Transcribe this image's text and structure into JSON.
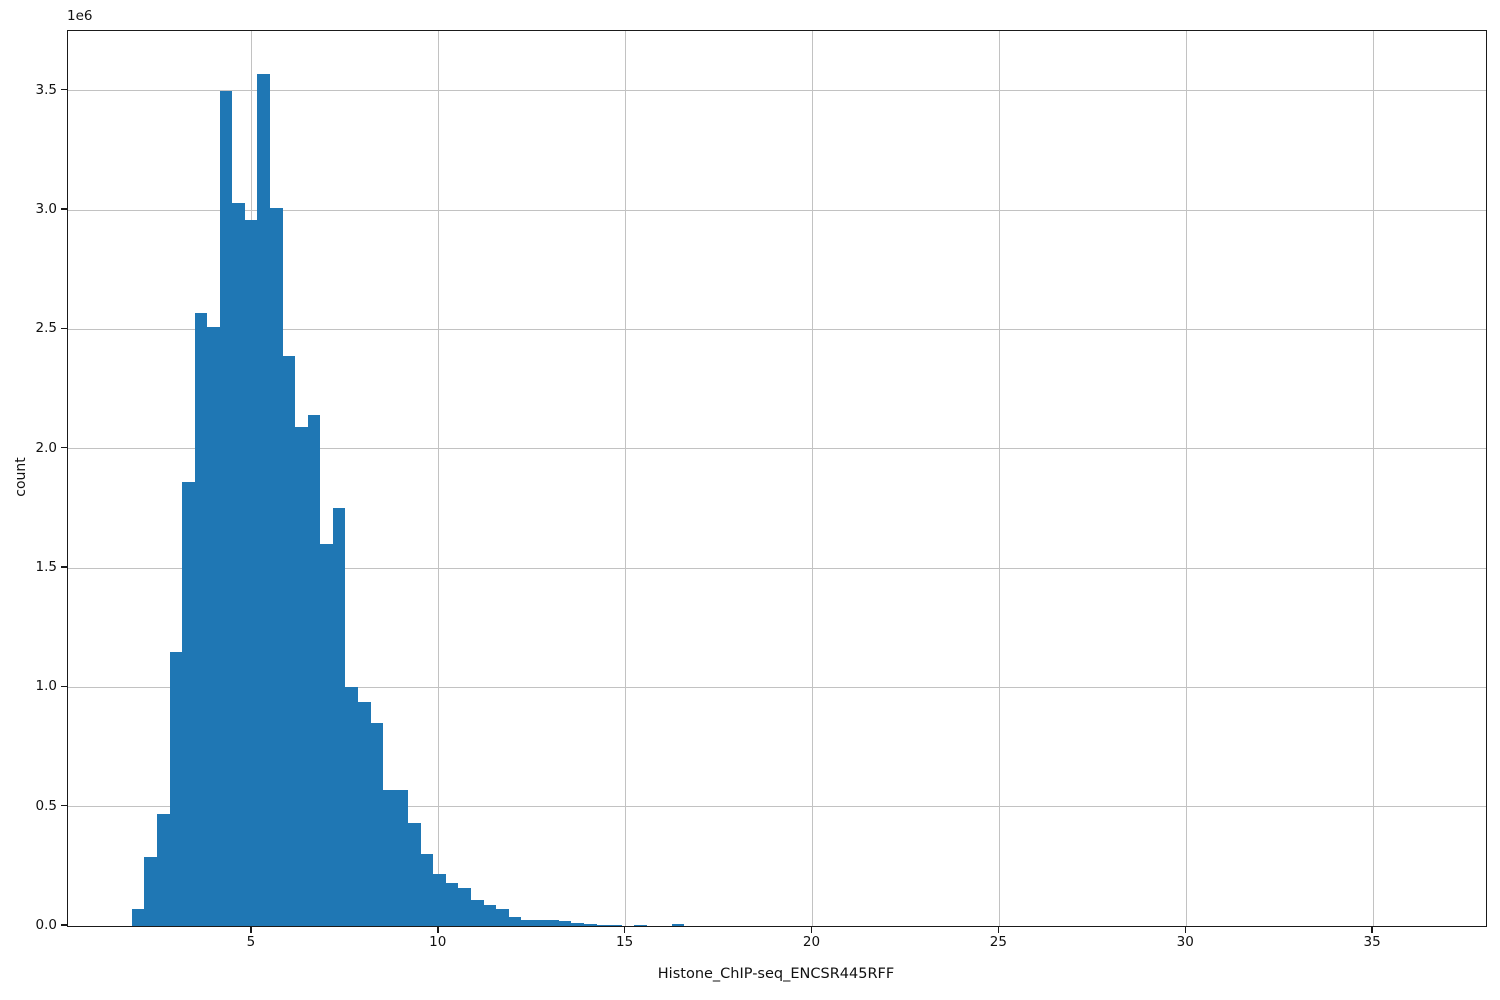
{
  "chart_data": {
    "type": "bar",
    "subtype": "histogram",
    "title": "",
    "xlabel": "Histone_ChIP-seq_ENCSR445RFF",
    "ylabel": "count",
    "y_offset_text": "1e6",
    "y_scale_factor": 1000000,
    "xlim": [
      0.08,
      38.02
    ],
    "ylim_e6": [
      0,
      3.75
    ],
    "grid": true,
    "legend": "none",
    "bar_color": "#1f77b4",
    "grid_color": "#c2c2c2",
    "spine_color": "#1a1a1a",
    "background_color": "#ffffff",
    "x_ticks": {
      "values": [
        5,
        10,
        15,
        20,
        25,
        30,
        35
      ],
      "labels": [
        "5",
        "10",
        "15",
        "20",
        "25",
        "30",
        "35"
      ]
    },
    "y_ticks": {
      "values_e6": [
        0.0,
        0.5,
        1.0,
        1.5,
        2.0,
        2.5,
        3.0,
        3.5
      ],
      "labels": [
        "0.0",
        "0.5",
        "1.0",
        "1.5",
        "2.0",
        "2.5",
        "3.0",
        "3.5"
      ]
    },
    "bin_width": 0.336,
    "bin_left": [
      1.79,
      2.126,
      2.462,
      2.798,
      3.134,
      3.47,
      3.806,
      4.142,
      4.478,
      4.814,
      5.15,
      5.486,
      5.822,
      6.158,
      6.494,
      6.83,
      7.166,
      7.502,
      7.838,
      8.174,
      8.51,
      8.846,
      9.182,
      9.518,
      9.854,
      10.19,
      10.526,
      10.862,
      11.198,
      11.534,
      11.87,
      12.206,
      12.542,
      12.878,
      13.214,
      13.55,
      13.886,
      14.222,
      14.558,
      14.894,
      15.23,
      15.566,
      15.902,
      16.238,
      16.574
    ],
    "counts_e6": [
      0.07,
      0.29,
      0.47,
      1.15,
      1.86,
      2.57,
      2.51,
      3.5,
      3.03,
      2.96,
      3.57,
      3.01,
      2.39,
      2.09,
      2.14,
      1.6,
      1.75,
      1.0,
      0.94,
      0.85,
      0.57,
      0.57,
      0.43,
      0.3,
      0.22,
      0.18,
      0.16,
      0.11,
      0.09,
      0.07,
      0.036,
      0.026,
      0.025,
      0.024,
      0.021,
      0.014,
      0.008,
      0.005,
      0.003,
      0,
      0.005,
      0,
      0,
      0.007,
      0
    ]
  }
}
